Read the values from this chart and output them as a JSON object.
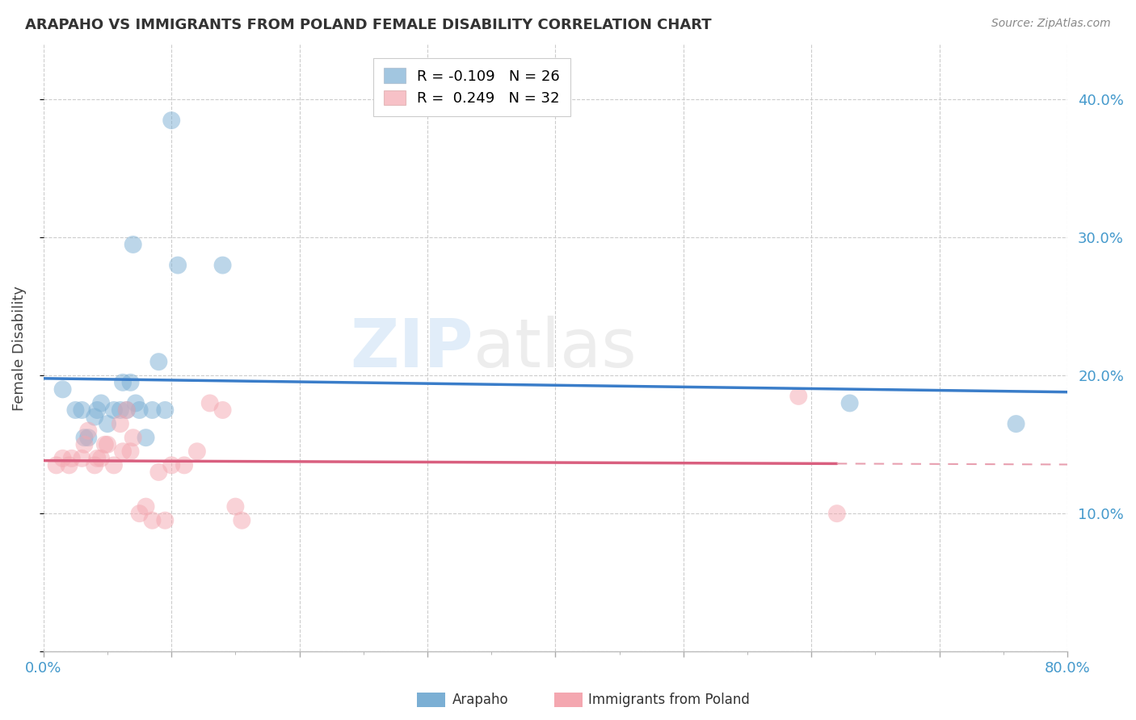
{
  "title": "ARAPAHO VS IMMIGRANTS FROM POLAND FEMALE DISABILITY CORRELATION CHART",
  "source": "Source: ZipAtlas.com",
  "ylabel": "Female Disability",
  "xlim": [
    0.0,
    0.8
  ],
  "ylim": [
    0.0,
    0.44
  ],
  "yticks": [
    0.0,
    0.1,
    0.2,
    0.3,
    0.4
  ],
  "yticklabels_right": [
    "",
    "10.0%",
    "20.0%",
    "30.0%",
    "40.0%"
  ],
  "legend_arapaho_R": "-0.109",
  "legend_arapaho_N": "26",
  "legend_poland_R": "0.249",
  "legend_poland_N": "32",
  "arapaho_color": "#7BAFD4",
  "poland_color": "#F4A7B0",
  "arapaho_line_color": "#3A7DC9",
  "poland_line_color": "#D95F7F",
  "poland_dash_color": "#E8A0B0",
  "watermark_zip": "ZIP",
  "watermark_atlas": "atlas",
  "arapaho_x": [
    0.015,
    0.025,
    0.03,
    0.032,
    0.035,
    0.04,
    0.042,
    0.045,
    0.05,
    0.055,
    0.06,
    0.062,
    0.065,
    0.068,
    0.07,
    0.072,
    0.075,
    0.08,
    0.085,
    0.09,
    0.095,
    0.1,
    0.105,
    0.14,
    0.63,
    0.76
  ],
  "arapaho_y": [
    0.19,
    0.175,
    0.175,
    0.155,
    0.155,
    0.17,
    0.175,
    0.18,
    0.165,
    0.175,
    0.175,
    0.195,
    0.175,
    0.195,
    0.295,
    0.18,
    0.175,
    0.155,
    0.175,
    0.21,
    0.175,
    0.385,
    0.28,
    0.28,
    0.18,
    0.165
  ],
  "poland_x": [
    0.01,
    0.015,
    0.02,
    0.022,
    0.03,
    0.032,
    0.035,
    0.04,
    0.042,
    0.045,
    0.048,
    0.05,
    0.055,
    0.06,
    0.062,
    0.065,
    0.068,
    0.07,
    0.075,
    0.08,
    0.085,
    0.09,
    0.095,
    0.1,
    0.11,
    0.12,
    0.13,
    0.14,
    0.15,
    0.155,
    0.59,
    0.62
  ],
  "poland_y": [
    0.135,
    0.14,
    0.135,
    0.14,
    0.14,
    0.15,
    0.16,
    0.135,
    0.14,
    0.14,
    0.15,
    0.15,
    0.135,
    0.165,
    0.145,
    0.175,
    0.145,
    0.155,
    0.1,
    0.105,
    0.095,
    0.13,
    0.095,
    0.135,
    0.135,
    0.145,
    0.18,
    0.175,
    0.105,
    0.095,
    0.185,
    0.1
  ]
}
